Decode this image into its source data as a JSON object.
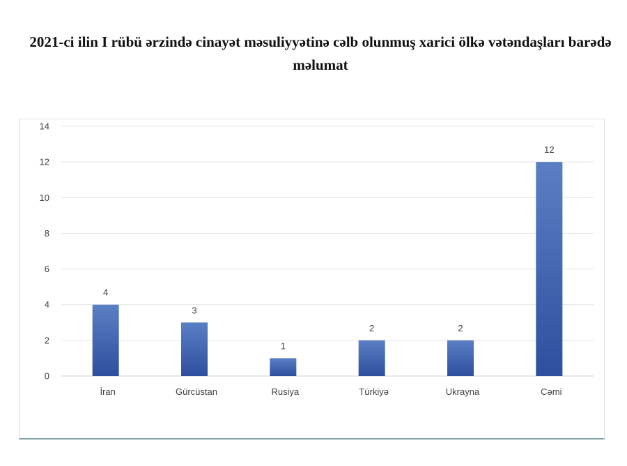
{
  "page": {
    "title": "2021-ci ilin I rübü ərzində cinayət məsuliyyətinə cəlb olunmuş xarici ölkə vətəndaşları barədə məlumat"
  },
  "colors": {
    "bar_top": "#5b7fc4",
    "bar_bottom": "#2e4f9e",
    "grid": "#e3e3e3",
    "axis": "#d0d0d0",
    "frame_bottom": "#7fa3a6"
  },
  "chart_data": {
    "type": "bar",
    "title": "2021-ci ilin I rübü ərzində cinayət məsuliyyətinə cəlb olunmuş xarici ölkə vətəndaşları barədə məlumat",
    "categories": [
      "İran",
      "Gürcüstan",
      "Rusiya",
      "Türkiyə",
      "Ukrayna",
      "Cəmi"
    ],
    "values": [
      4,
      3,
      1,
      2,
      2,
      12
    ],
    "data_labels": [
      "4",
      "3",
      "1",
      "2",
      "2",
      "12"
    ],
    "y_ticks": [
      0,
      2,
      4,
      6,
      8,
      10,
      12,
      14
    ],
    "ylim": [
      0,
      14
    ],
    "xlabel": "",
    "ylabel": "",
    "grid": true,
    "legend": "none"
  }
}
